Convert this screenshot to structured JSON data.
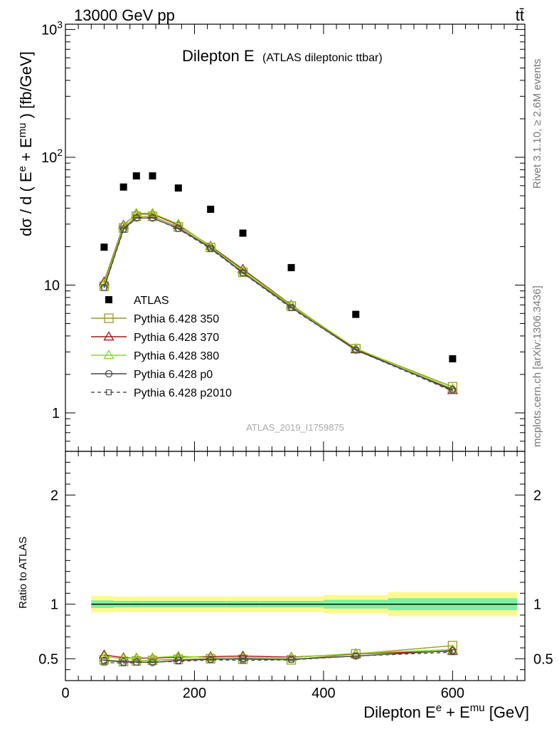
{
  "header": {
    "energy_label": "13000 GeV pp",
    "process_label": "tt̄"
  },
  "side_text": {
    "rivet": "Rivet 3.1.10, ≥ 2.6M events",
    "mcplots": "mcplots.cern.ch [arXiv:1306.3436]"
  },
  "chart_data": [
    {
      "type": "scatter",
      "panel": "main",
      "title": "Dilepton E",
      "subtitle": "(ATLAS dileptonic ttbar)",
      "watermark": "ATLAS_2019_I1759875",
      "xlabel": "",
      "ylabel": "dσ / d ( E^e + E^mu ) [fb/GeV]",
      "xlim": [
        0,
        712
      ],
      "ylim": [
        0.5,
        1100
      ],
      "yscale": "log",
      "yticks": [
        1,
        10,
        100,
        1000
      ],
      "ytick_labels": [
        "1",
        "10",
        "10^2",
        "10^3"
      ],
      "legend_position": "left-middle",
      "x": [
        60,
        90,
        110,
        135,
        175,
        225,
        275,
        350,
        450,
        600
      ],
      "series": [
        {
          "name": "ATLAS",
          "style": "data",
          "color": "#000000",
          "marker": "filled-square",
          "values": [
            19.8,
            58.5,
            71.5,
            71.5,
            57.5,
            39.2,
            25.5,
            13.7,
            5.9,
            2.65
          ]
        },
        {
          "name": "Pythia 6.428 350",
          "style": "solid",
          "color": "#9a9a25",
          "marker": "open-square",
          "values": [
            9.8,
            28.0,
            34.5,
            34.5,
            28.5,
            19.7,
            12.6,
            6.85,
            3.18,
            1.6
          ]
        },
        {
          "name": "Pythia 6.428 370",
          "style": "solid",
          "color": "#a01818",
          "marker": "open-triangle",
          "values": [
            10.6,
            29.5,
            36.0,
            36.0,
            29.5,
            20.2,
            13.3,
            7.0,
            3.15,
            1.5
          ]
        },
        {
          "name": "Pythia 6.428 380",
          "style": "solid",
          "color": "#88dd11",
          "marker": "open-triangle",
          "values": [
            10.3,
            29.0,
            36.5,
            36.5,
            30.0,
            20.0,
            13.0,
            6.95,
            3.2,
            1.55
          ]
        },
        {
          "name": "Pythia 6.428 p0",
          "style": "solid",
          "color": "#444444",
          "marker": "open-circle",
          "values": [
            9.6,
            27.5,
            33.5,
            33.5,
            27.8,
            19.5,
            12.5,
            6.7,
            3.1,
            1.52
          ]
        },
        {
          "name": "Pythia 6.428 p2010",
          "style": "dashed",
          "color": "#555555",
          "marker": "open-square-small",
          "values": [
            9.5,
            27.0,
            33.5,
            33.5,
            27.5,
            19.2,
            12.4,
            6.6,
            3.1,
            1.48
          ]
        }
      ]
    },
    {
      "type": "line",
      "panel": "ratio",
      "xlabel": "Dilepton E^e + E^mu [GeV]",
      "ylabel": "Ratio to ATLAS",
      "xlim": [
        0,
        712
      ],
      "ylim": [
        0.3,
        2.4
      ],
      "xticks": [
        0,
        200,
        400,
        600
      ],
      "yticks": [
        0.5,
        1,
        2
      ],
      "ytick_labels": [
        "0.5",
        "1",
        "2"
      ],
      "reference_line": 1,
      "band_bins": [
        {
          "x0": 40,
          "x1": 75,
          "stat": 0.035,
          "total": 0.075
        },
        {
          "x0": 75,
          "x1": 100,
          "stat": 0.03,
          "total": 0.07
        },
        {
          "x0": 100,
          "x1": 120,
          "stat": 0.03,
          "total": 0.07
        },
        {
          "x0": 120,
          "x1": 150,
          "stat": 0.03,
          "total": 0.07
        },
        {
          "x0": 150,
          "x1": 200,
          "stat": 0.03,
          "total": 0.07
        },
        {
          "x0": 200,
          "x1": 250,
          "stat": 0.03,
          "total": 0.07
        },
        {
          "x0": 250,
          "x1": 300,
          "stat": 0.03,
          "total": 0.07
        },
        {
          "x0": 300,
          "x1": 400,
          "stat": 0.03,
          "total": 0.07
        },
        {
          "x0": 400,
          "x1": 500,
          "stat": 0.04,
          "total": 0.085
        },
        {
          "x0": 500,
          "x1": 700,
          "stat": 0.055,
          "total": 0.11
        }
      ],
      "band_colors": {
        "stat": "#7fef9f",
        "total": "#fdf98f"
      },
      "x": [
        60,
        90,
        110,
        135,
        175,
        225,
        275,
        350,
        450,
        600
      ],
      "series": [
        {
          "name": "Pythia 6.428 350",
          "style": "solid",
          "color": "#9a9a25",
          "marker": "open-square",
          "values": [
            0.49,
            0.475,
            0.48,
            0.485,
            0.495,
            0.5,
            0.495,
            0.49,
            0.545,
            0.62
          ]
        },
        {
          "name": "Pythia 6.428 370",
          "style": "solid",
          "color": "#a01818",
          "marker": "open-triangle",
          "values": [
            0.535,
            0.51,
            0.505,
            0.505,
            0.515,
            0.52,
            0.525,
            0.515,
            0.545,
            0.57
          ]
        },
        {
          "name": "Pythia 6.428 380",
          "style": "solid",
          "color": "#88dd11",
          "marker": "open-triangle",
          "values": [
            0.52,
            0.5,
            0.51,
            0.51,
            0.525,
            0.51,
            0.51,
            0.51,
            0.55,
            0.585
          ]
        },
        {
          "name": "Pythia 6.428 p0",
          "style": "solid",
          "color": "#444444",
          "marker": "open-circle",
          "values": [
            0.485,
            0.47,
            0.47,
            0.465,
            0.485,
            0.495,
            0.5,
            0.495,
            0.525,
            0.575
          ]
        },
        {
          "name": "Pythia 6.428 p2010",
          "style": "dashed",
          "color": "#555555",
          "marker": "open-square-small",
          "values": [
            0.465,
            0.46,
            0.465,
            0.47,
            0.475,
            0.49,
            0.485,
            0.49,
            0.525,
            0.56
          ]
        }
      ]
    }
  ]
}
